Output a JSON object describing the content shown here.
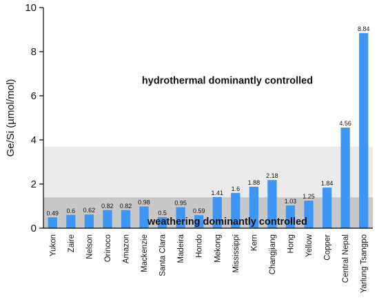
{
  "chart_data": {
    "type": "bar",
    "ylabel": "Ge/Si (µmol/mol)",
    "ylim": [
      0,
      10
    ],
    "yticks": [
      0,
      2,
      4,
      6,
      8,
      10
    ],
    "categories": [
      "Yukon",
      "Zaire",
      "Nelson",
      "Orinoco",
      "Amazon",
      "Mackenzie",
      "Santa Clara",
      "Madeira",
      "Hondo",
      "Mekong",
      "Mississippi",
      "Kern",
      "Changjiang",
      "Hong",
      "Yellow",
      "Copper",
      "Central Nepal",
      "Yarlung Tsangpo"
    ],
    "values": [
      0.49,
      0.6,
      0.62,
      0.82,
      0.82,
      0.98,
      0.5,
      0.95,
      0.59,
      1.41,
      1.6,
      1.88,
      2.18,
      1.03,
      1.25,
      1.84,
      4.56,
      8.84
    ],
    "value_labels": [
      "0.49",
      "0.6",
      "0.62",
      "0.82",
      "0.82",
      "0.98",
      "0.5",
      "0.95",
      "0.59",
      "1.41",
      "1.6",
      "1.88",
      "2.18",
      "1.03",
      "1.25",
      "1.84",
      "4.56",
      "8.84"
    ],
    "bands": [
      {
        "from": 1.4,
        "to": 3.7,
        "color": "#ebebeb"
      },
      {
        "from": 0,
        "to": 1.4,
        "color": "#c8c8c8"
      }
    ],
    "annotations": {
      "upper": "hydrothermal dominantly controlled",
      "lower": "weathering dominantly controlled"
    },
    "bar_color": "#3d95f5"
  }
}
